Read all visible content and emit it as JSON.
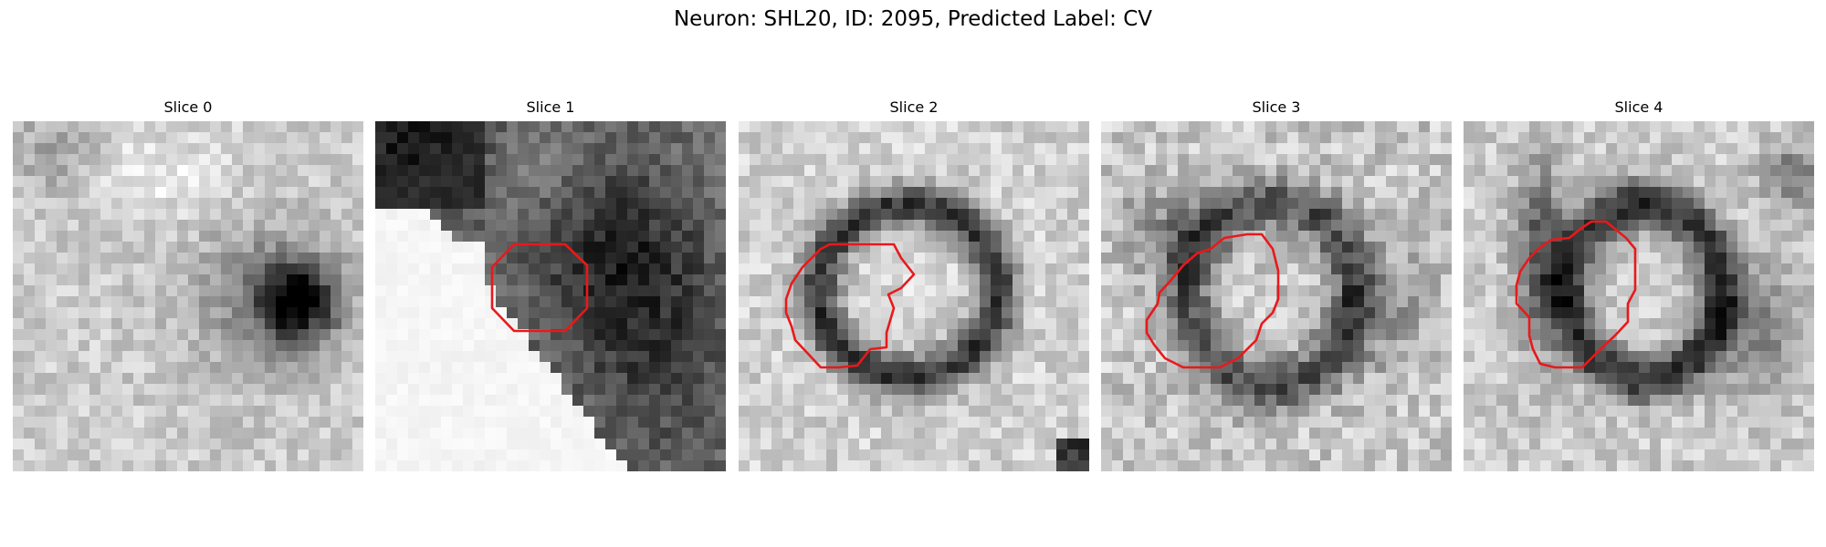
{
  "figure": {
    "title": "Neuron: SHL20, ID: 2095, Predicted Label: CV",
    "contour_color": "#e8191b"
  },
  "slices": [
    {
      "title": "Slice 0",
      "has_contour": false,
      "brightness": "light",
      "dark_regions": [
        "dark-blob-right"
      ]
    },
    {
      "title": "Slice 1",
      "has_contour": true,
      "brightness": "mixed",
      "dark_regions": [
        "dark-corner-top-left",
        "dark-region-right"
      ]
    },
    {
      "title": "Slice 2",
      "has_contour": true,
      "brightness": "light",
      "dark_regions": [
        "dark-ring-center"
      ]
    },
    {
      "title": "Slice 3",
      "has_contour": true,
      "brightness": "light",
      "dark_regions": [
        "dark-ring-center"
      ]
    },
    {
      "title": "Slice 4",
      "has_contour": true,
      "brightness": "light",
      "dark_regions": [
        "dark-ring-center",
        "dark-streak-left"
      ]
    }
  ]
}
